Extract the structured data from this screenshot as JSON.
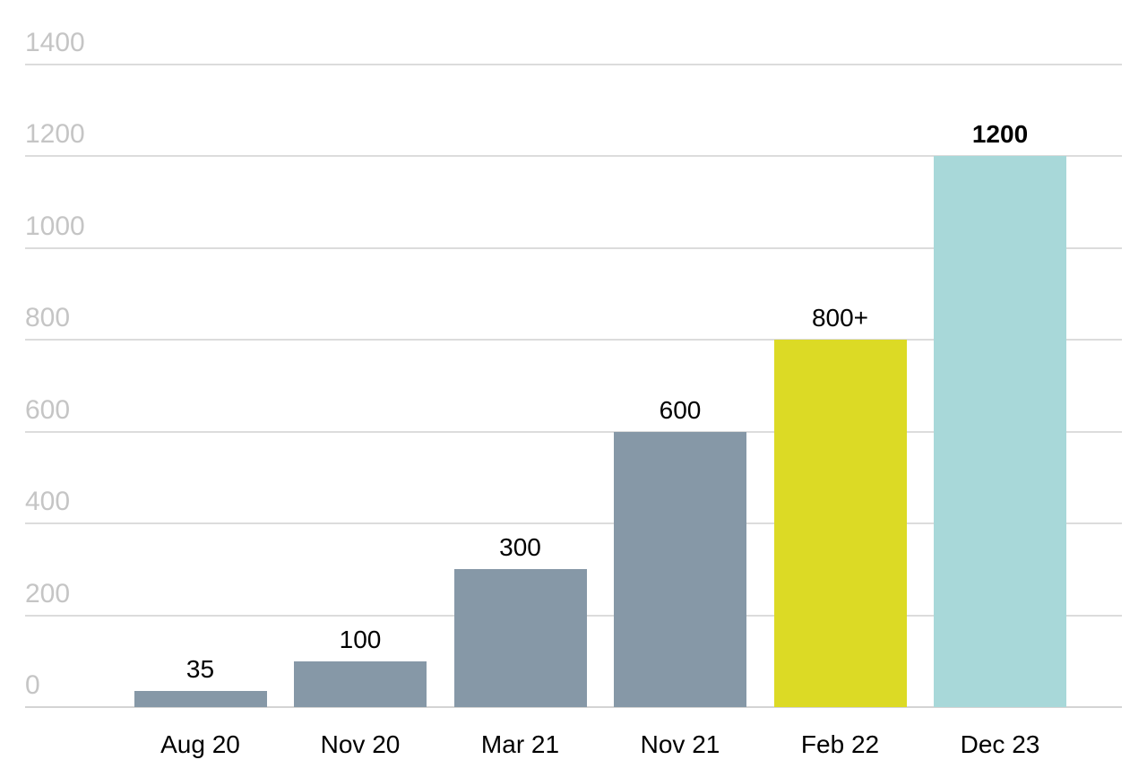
{
  "chart_data": {
    "type": "bar",
    "title": "",
    "xlabel": "",
    "ylabel": "",
    "categories": [
      "Aug 20",
      "Nov 20",
      "Mar 21",
      "Nov 21",
      "Feb 22",
      "Dec 23"
    ],
    "values": [
      35,
      100,
      300,
      600,
      800,
      1200
    ],
    "value_labels": [
      "35",
      "100",
      "300",
      "600",
      "800+",
      "1200"
    ],
    "emphasized_label_index": 5,
    "bar_colors": [
      "#8698a7",
      "#8698a7",
      "#8698a7",
      "#8698a7",
      "#dcda25",
      "#a8d8d9"
    ],
    "ylim": [
      0,
      1400
    ],
    "y_ticks": [
      0,
      200,
      400,
      600,
      800,
      1000,
      1200,
      1400
    ],
    "y_tick_labels": [
      "0",
      "200",
      "400",
      "600",
      "800",
      "1000",
      "1200",
      "1400"
    ],
    "grid": true,
    "legend": false,
    "colors": {
      "background": "#ffffff",
      "gridline": "#dcdcdc",
      "baseline": "#d4d4d4",
      "y_tick_text": "#c5c5c5",
      "value_label_text": "#000000",
      "category_label_text": "#000000"
    }
  }
}
